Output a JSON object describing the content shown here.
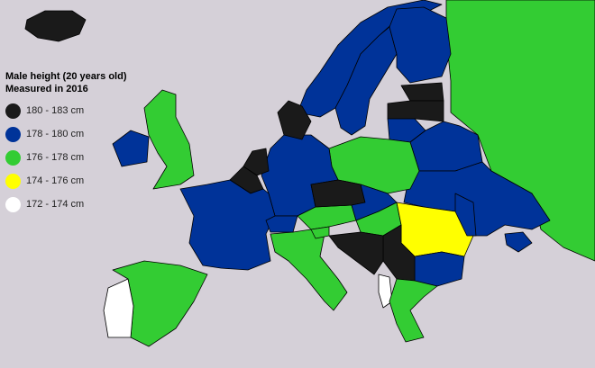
{
  "legend": {
    "title_line1": "Male height (20 years old)",
    "title_line2": "Measured in 2016",
    "items": [
      {
        "label": "180 - 183 cm",
        "color": "#1a1a1a"
      },
      {
        "label": "178 - 180 cm",
        "color": "#003399"
      },
      {
        "label": "176 - 178 cm",
        "color": "#33cc33"
      },
      {
        "label": "174 - 176 cm",
        "color": "#ffff00"
      },
      {
        "label": "172 - 174 cm",
        "color": "#ffffff"
      }
    ]
  },
  "countries": [
    {
      "name": "Russia",
      "class": 2
    },
    {
      "name": "Iceland",
      "class": 0
    },
    {
      "name": "Norway",
      "class": 1
    },
    {
      "name": "Sweden",
      "class": 1
    },
    {
      "name": "Finland",
      "class": 1
    },
    {
      "name": "Estonia",
      "class": 0
    },
    {
      "name": "Latvia",
      "class": 0
    },
    {
      "name": "Lithuania",
      "class": 1
    },
    {
      "name": "Belarus",
      "class": 1
    },
    {
      "name": "Ukraine",
      "class": 1
    },
    {
      "name": "Poland",
      "class": 2
    },
    {
      "name": "Germany",
      "class": 1
    },
    {
      "name": "Denmark",
      "class": 0
    },
    {
      "name": "Netherlands",
      "class": 0
    },
    {
      "name": "Belgium",
      "class": 0
    },
    {
      "name": "France",
      "class": 1
    },
    {
      "name": "United Kingdom",
      "class": 2
    },
    {
      "name": "Ireland",
      "class": 1
    },
    {
      "name": "Spain",
      "class": 2
    },
    {
      "name": "Portugal",
      "class": 4
    },
    {
      "name": "Italy",
      "class": 2
    },
    {
      "name": "Switzerland",
      "class": 1
    },
    {
      "name": "Austria",
      "class": 2
    },
    {
      "name": "Czech Republic",
      "class": 0
    },
    {
      "name": "Slovakia",
      "class": 1
    },
    {
      "name": "Hungary",
      "class": 2
    },
    {
      "name": "Romania",
      "class": 3
    },
    {
      "name": "Moldova",
      "class": 1
    },
    {
      "name": "Bulgaria",
      "class": 1
    },
    {
      "name": "Serbia",
      "class": 0
    },
    {
      "name": "Croatia",
      "class": 0
    },
    {
      "name": "Albania",
      "class": 4
    },
    {
      "name": "Greece",
      "class": 2
    },
    {
      "name": "Slovenia",
      "class": 2
    },
    {
      "name": "Crimea",
      "class": 1
    }
  ]
}
